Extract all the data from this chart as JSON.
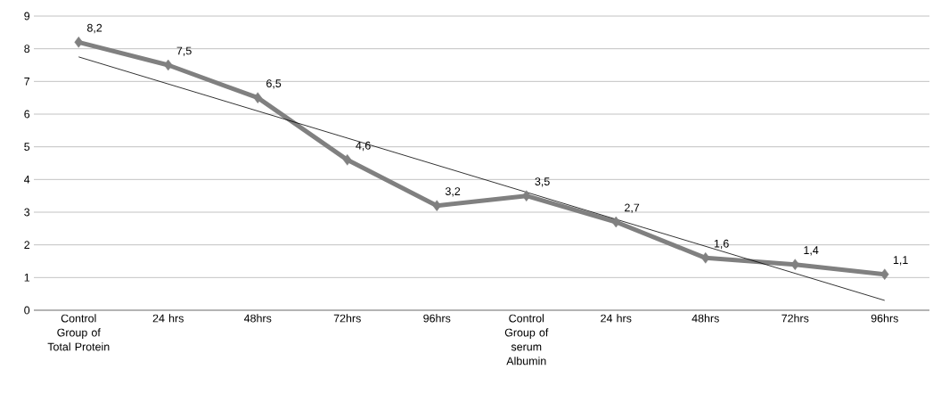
{
  "chart_data": {
    "type": "line",
    "categories": [
      "Control Group of Total Protein",
      "24 hrs",
      "48hrs",
      "72hrs",
      "96hrs",
      "Control Group of serum Albumin",
      "24 hrs",
      "48hrs",
      "72hrs",
      "96hrs"
    ],
    "series": [
      {
        "color": "#808080",
        "values": [
          8.2,
          7.5,
          6.5,
          4.6,
          3.2,
          3.5,
          2.7,
          1.6,
          1.4,
          1.1
        ],
        "marker": "diamond",
        "value_labels": [
          "8,2",
          "7,5",
          "6,5",
          "4,6",
          "3,2",
          "3,5",
          "2,7",
          "1,6",
          "1,4",
          "1,1"
        ]
      },
      {
        "color": "#000000",
        "values": [
          7.75,
          null,
          null,
          null,
          null,
          null,
          null,
          null,
          null,
          0.3
        ],
        "marker": "none"
      }
    ],
    "ylim": [
      0,
      9
    ],
    "yticks": [
      0,
      1,
      2,
      3,
      4,
      5,
      6,
      7,
      8,
      9
    ],
    "grid": "y"
  }
}
